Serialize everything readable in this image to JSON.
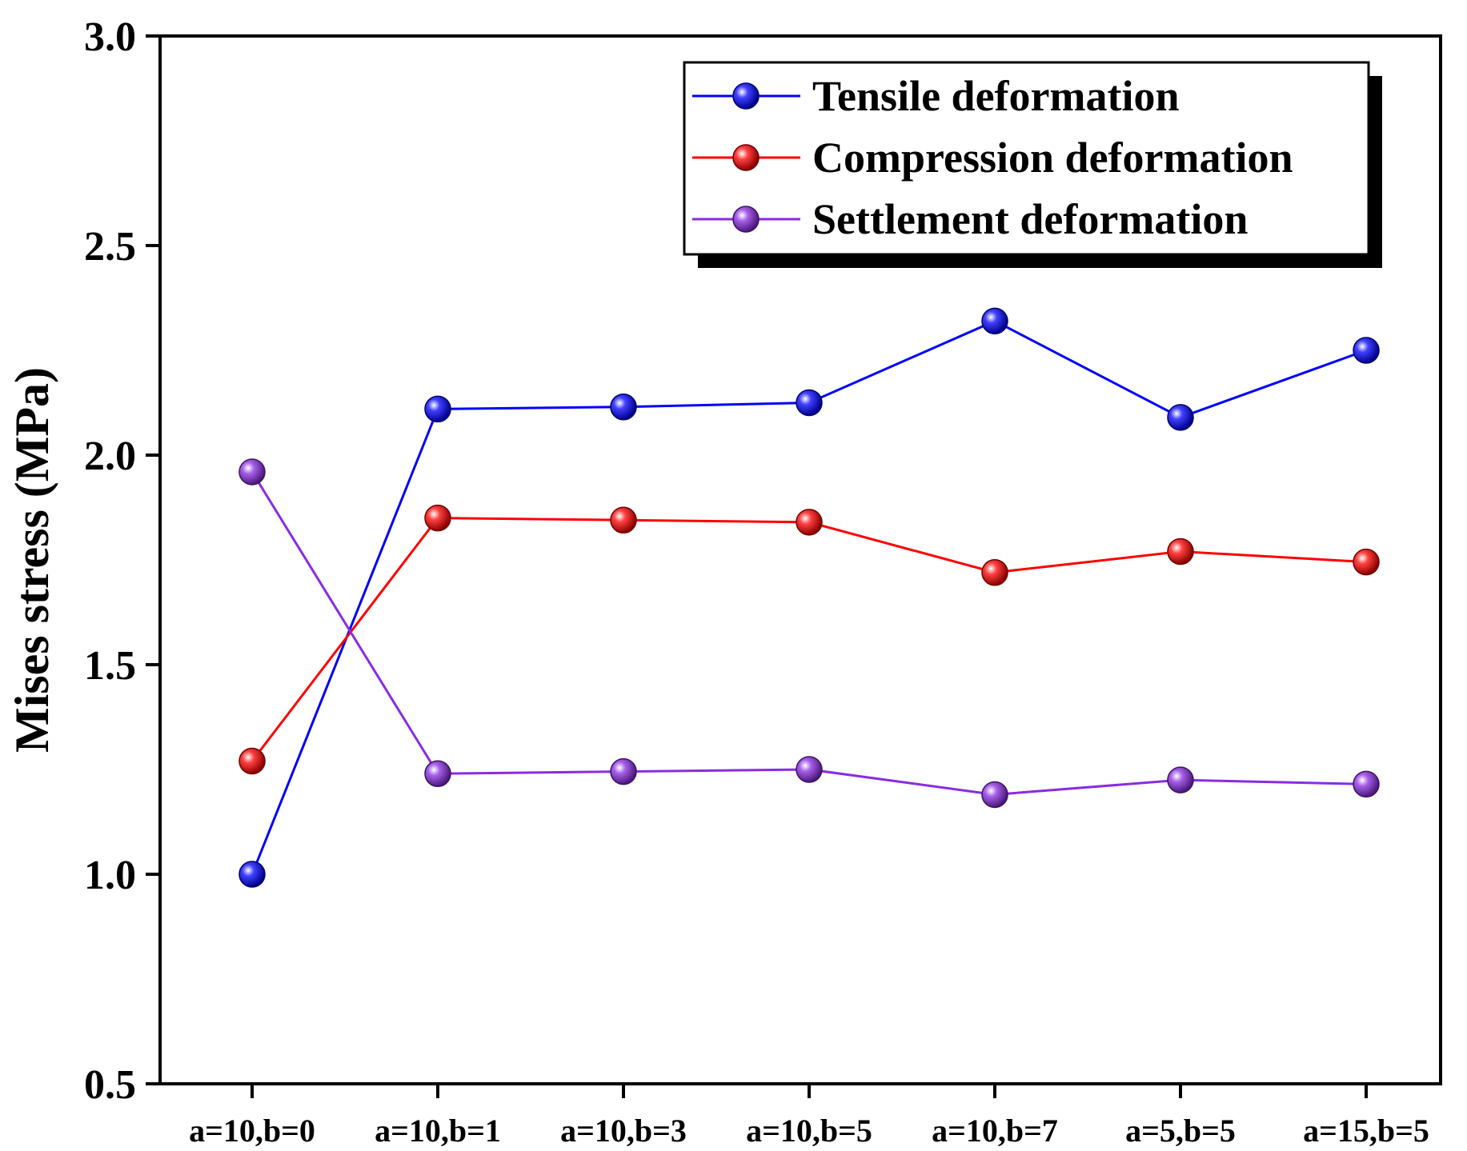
{
  "chart_data": {
    "type": "line",
    "title": "",
    "xlabel": "",
    "ylabel": "Mises stress (MPa)",
    "categories": [
      "a=10,b=0",
      "a=10,b=1",
      "a=10,b=3",
      "a=10,b=5",
      "a=10,b=7",
      "a=5,b=5",
      "a=15,b=5"
    ],
    "ylim": [
      0.5,
      3.0
    ],
    "yticks": [
      "0.5",
      "1.0",
      "1.5",
      "2.0",
      "2.5",
      "3.0"
    ],
    "grid": false,
    "legend_position": "top-right",
    "series": [
      {
        "name": "Tensile deformation",
        "color": "#0000ff",
        "values": [
          1.0,
          2.11,
          2.115,
          2.125,
          2.32,
          2.09,
          2.25
        ]
      },
      {
        "name": "Compression deformation",
        "color": "#ff0000",
        "values": [
          1.27,
          1.85,
          1.845,
          1.84,
          1.72,
          1.77,
          1.745
        ]
      },
      {
        "name": "Settlement deformation",
        "color": "#8a2be2",
        "values": [
          1.96,
          1.24,
          1.245,
          1.25,
          1.19,
          1.225,
          1.215
        ]
      }
    ]
  }
}
